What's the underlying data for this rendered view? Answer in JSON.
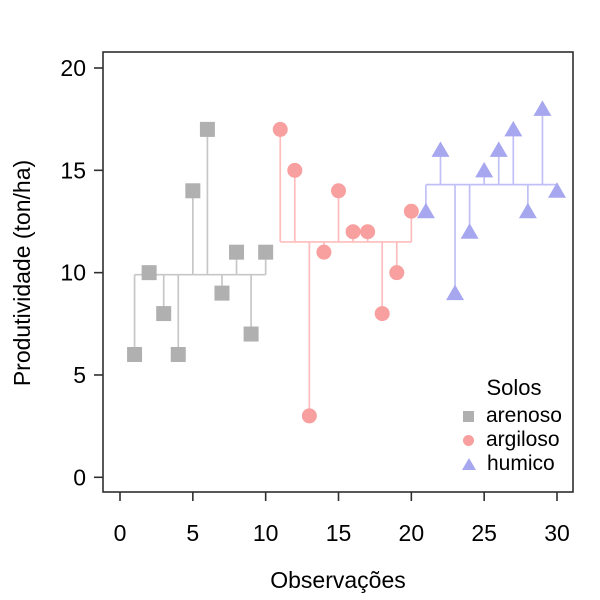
{
  "chart_data": {
    "type": "scatter",
    "title": "",
    "xlabel": "Observações",
    "ylabel": "Produtividade (ton/ha)",
    "xlim": [
      -1.2,
      31.2
    ],
    "ylim": [
      -0.8,
      20.8
    ],
    "xticks": [
      0,
      5,
      10,
      15,
      20,
      25,
      30
    ],
    "yticks": [
      0,
      5,
      10,
      15,
      20
    ],
    "grid": false,
    "axis_color": "#2f2f2f",
    "text_color": "#000000",
    "legend": {
      "title": "Solos",
      "position": "bottomright"
    },
    "series": [
      {
        "name": "arenoso",
        "marker": "square",
        "marker_color": "#b0b0b0",
        "line_color": "#c7c7c7",
        "x": [
          1,
          2,
          3,
          4,
          5,
          6,
          7,
          8,
          9,
          10
        ],
        "values": [
          6,
          10,
          8,
          6,
          14,
          17,
          9,
          11,
          7,
          11
        ],
        "mean": 9.9
      },
      {
        "name": "argiloso",
        "marker": "circle",
        "marker_color": "#f89f9f",
        "line_color": "#ffbcbc",
        "x": [
          11,
          12,
          13,
          14,
          15,
          16,
          17,
          18,
          19,
          20
        ],
        "values": [
          17,
          15,
          3,
          11,
          14,
          12,
          12,
          8,
          10,
          13
        ],
        "mean": 11.5
      },
      {
        "name": "humico",
        "marker": "triangle",
        "marker_color": "#a7a7f0",
        "line_color": "#c0c0f7",
        "x": [
          21,
          22,
          23,
          24,
          25,
          26,
          27,
          28,
          29,
          30
        ],
        "values": [
          13,
          16,
          9,
          12,
          15,
          16,
          17,
          13,
          18,
          14
        ],
        "mean": 14.3
      }
    ]
  }
}
